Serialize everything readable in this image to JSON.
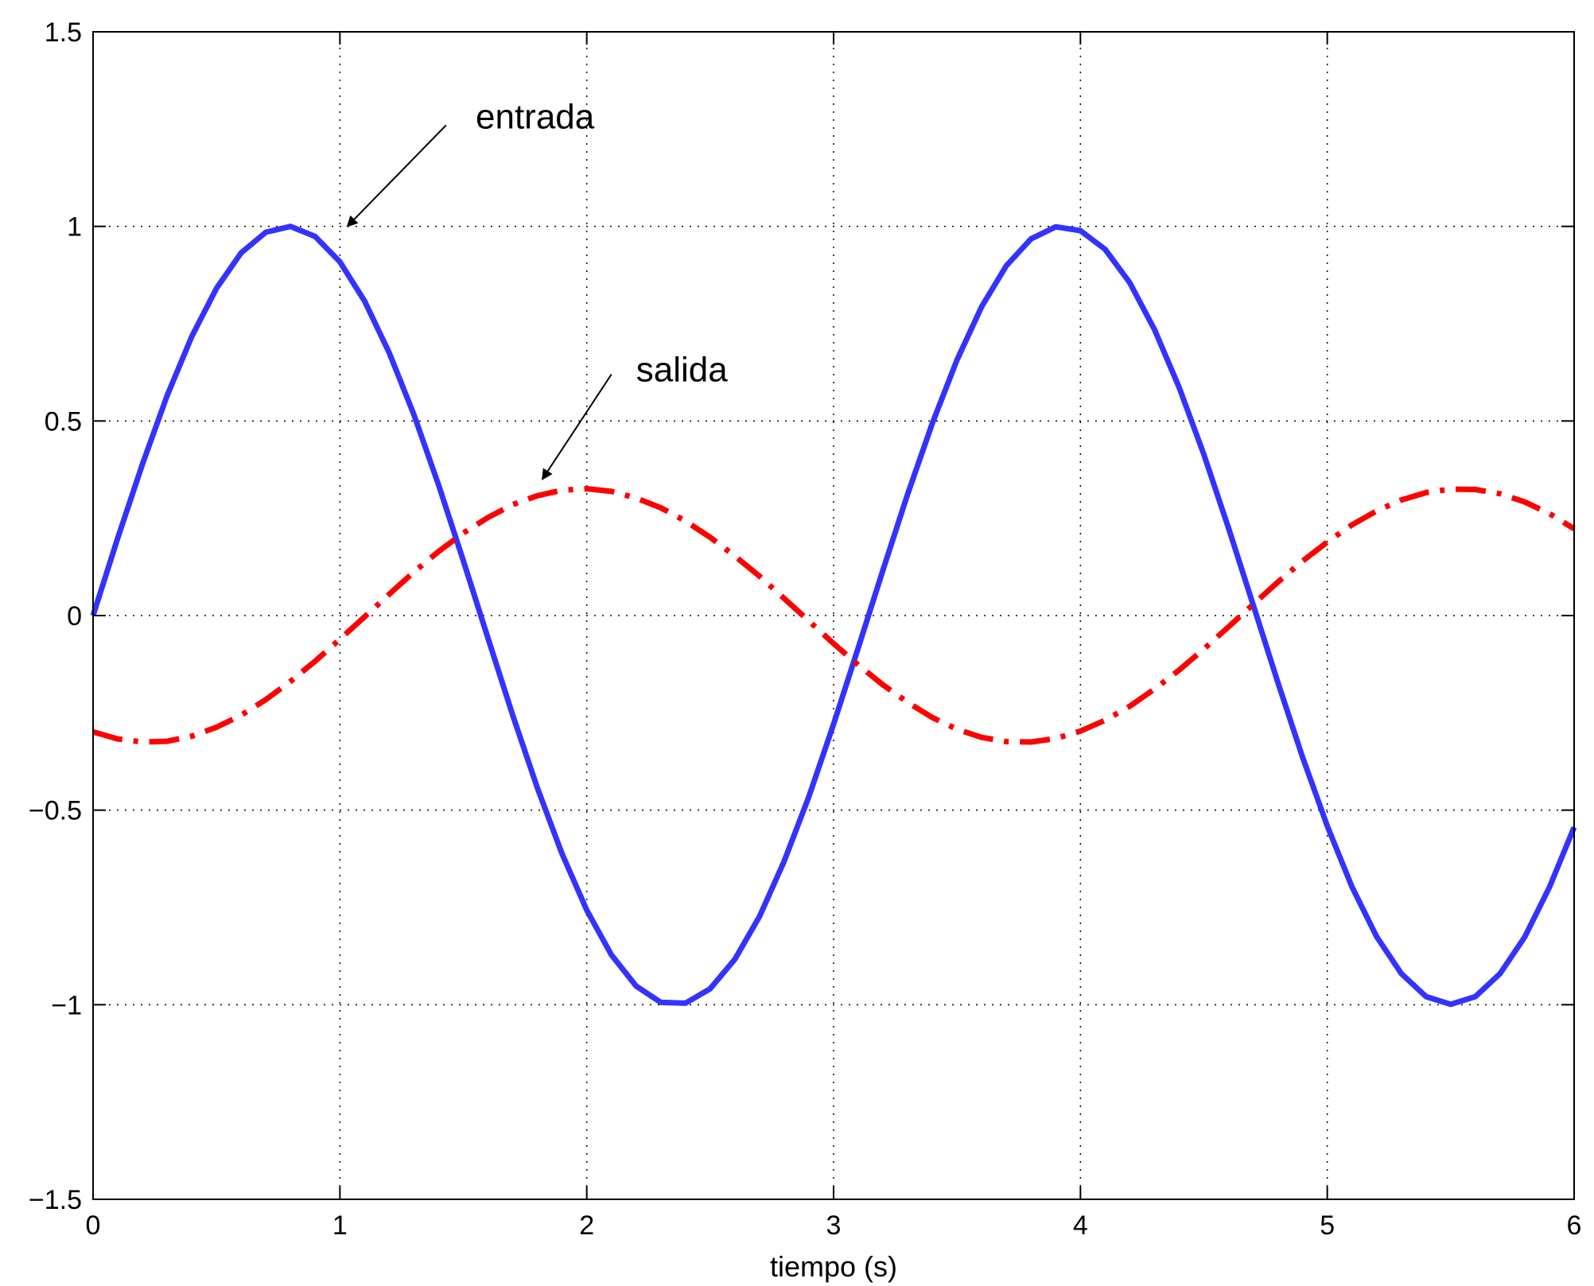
{
  "chart_data": {
    "type": "line",
    "xlabel": "tiempo (s)",
    "ylabel": "",
    "title": "",
    "xlim": [
      0,
      6
    ],
    "ylim": [
      -1.5,
      1.5
    ],
    "xticks": [
      0,
      1,
      2,
      3,
      4,
      5,
      6
    ],
    "yticks": [
      -1.5,
      -1,
      -0.5,
      0,
      0.5,
      1,
      1.5
    ],
    "xtick_labels": [
      "0",
      "1",
      "2",
      "3",
      "4",
      "5",
      "6"
    ],
    "ytick_labels": [
      "−1.5",
      "−1",
      "−0.5",
      "0",
      "0.5",
      "1",
      "1.5"
    ],
    "grid": true,
    "x": [
      0,
      0.1,
      0.2,
      0.3,
      0.4,
      0.5,
      0.6,
      0.7,
      0.8,
      0.9,
      1.0,
      1.1,
      1.2,
      1.3,
      1.4,
      1.5,
      1.6,
      1.7,
      1.8,
      1.9,
      2.0,
      2.1,
      2.2,
      2.3,
      2.4,
      2.5,
      2.6,
      2.7,
      2.8,
      2.9,
      3.0,
      3.1,
      3.2,
      3.3,
      3.4,
      3.5,
      3.6,
      3.7,
      3.8,
      3.9,
      4.0,
      4.1,
      4.2,
      4.3,
      4.4,
      4.5,
      4.6,
      4.7,
      4.8,
      4.9,
      5.0,
      5.1,
      5.2,
      5.3,
      5.4,
      5.5,
      5.6,
      5.7,
      5.8,
      5.9,
      6.0
    ],
    "series": [
      {
        "name": "entrada",
        "color": "#3333ff",
        "style": "solid",
        "values": [
          0.0,
          0.199,
          0.389,
          0.565,
          0.717,
          0.841,
          0.932,
          0.985,
          1.0,
          0.974,
          0.909,
          0.808,
          0.675,
          0.516,
          0.335,
          0.141,
          -0.058,
          -0.256,
          -0.443,
          -0.612,
          -0.757,
          -0.872,
          -0.952,
          -0.994,
          -0.996,
          -0.959,
          -0.883,
          -0.773,
          -0.631,
          -0.465,
          -0.279,
          -0.083,
          0.117,
          0.312,
          0.494,
          0.657,
          0.794,
          0.899,
          0.968,
          0.999,
          0.989,
          0.941,
          0.855,
          0.735,
          0.586,
          0.414,
          0.225,
          0.027,
          -0.172,
          -0.364,
          -0.541,
          -0.697,
          -0.825,
          -0.92,
          -0.979,
          -0.999,
          -0.979,
          -0.92,
          -0.826,
          -0.698,
          -0.544
        ]
      },
      {
        "name": "salida",
        "color": "#ff0000",
        "style": "dashdot",
        "values": [
          -0.299,
          -0.317,
          -0.325,
          -0.323,
          -0.31,
          -0.287,
          -0.256,
          -0.216,
          -0.169,
          -0.117,
          -0.061,
          -0.003,
          0.055,
          0.112,
          0.165,
          0.212,
          0.252,
          0.285,
          0.308,
          0.322,
          0.326,
          0.319,
          0.302,
          0.277,
          0.243,
          0.201,
          0.153,
          0.101,
          0.044,
          -0.014,
          -0.072,
          -0.127,
          -0.178,
          -0.223,
          -0.262,
          -0.292,
          -0.313,
          -0.324,
          -0.325,
          -0.316,
          -0.297,
          -0.269,
          -0.233,
          -0.189,
          -0.14,
          -0.086,
          -0.029,
          0.029,
          0.086,
          0.14,
          0.189,
          0.233,
          0.269,
          0.297,
          0.316,
          0.325,
          0.324,
          0.313,
          0.292,
          0.262,
          0.223
        ]
      }
    ],
    "annotations": [
      {
        "text": "entrada",
        "text_at": [
          1.55,
          1.28
        ],
        "arrow_from": [
          1.43,
          1.26
        ],
        "arrow_to": [
          1.03,
          1.0
        ]
      },
      {
        "text": "salida",
        "text_at": [
          2.2,
          0.63
        ],
        "arrow_from": [
          2.1,
          0.62
        ],
        "arrow_to": [
          1.82,
          0.35
        ]
      }
    ]
  }
}
